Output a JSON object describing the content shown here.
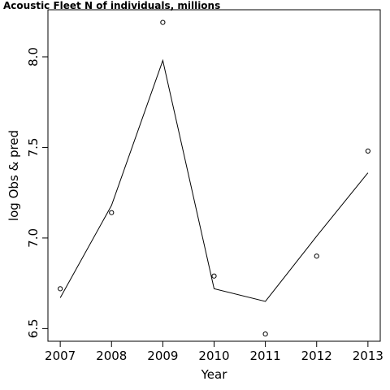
{
  "chart_data": {
    "type": "line",
    "title": "Acoustic Fleet   N of individuals, millions",
    "xlabel": "Year",
    "ylabel": "log Obs & pred",
    "x": [
      2007,
      2008,
      2009,
      2010,
      2011,
      2012,
      2013
    ],
    "x_tick_labels": [
      "2007",
      "2008",
      "2009",
      "2010",
      "2011",
      "2012",
      "2013"
    ],
    "y_tick_values": [
      6.5,
      7.0,
      7.5,
      8.0
    ],
    "y_tick_labels": [
      "6.5",
      "7.0",
      "7.5",
      "8.0"
    ],
    "xlim": [
      2006.76,
      2013.24
    ],
    "ylim": [
      6.43,
      8.26
    ],
    "series": [
      {
        "role": "observed",
        "style": "points",
        "marker": "open-circle",
        "values": [
          6.72,
          7.14,
          8.19,
          6.79,
          6.47,
          6.9,
          7.48
        ]
      },
      {
        "role": "predicted",
        "style": "line",
        "values": [
          6.67,
          7.18,
          7.98,
          6.72,
          6.65,
          7.01,
          7.36
        ]
      }
    ],
    "grid": false,
    "legend": "none",
    "colors": {
      "line": "#000000",
      "points": "#000000",
      "frame": "#000000",
      "background": "#ffffff"
    }
  }
}
